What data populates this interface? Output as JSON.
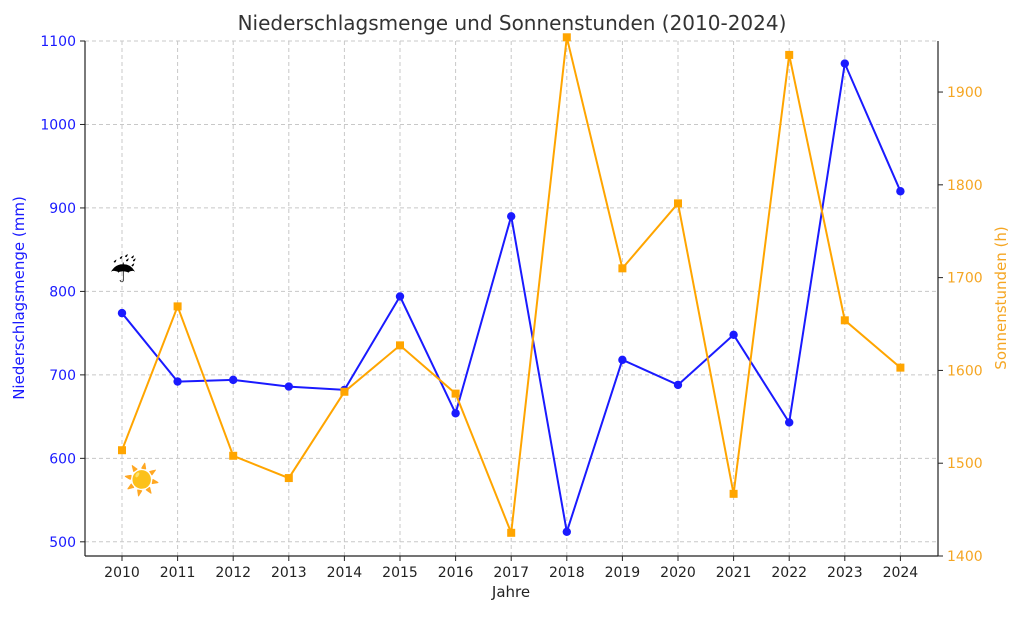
{
  "chart_data": {
    "type": "line",
    "title": "Niederschlagsmenge und Sonnenstunden (2010-2024)",
    "xlabel": "Jahre",
    "ylabel_left": "Niederschlagsmenge (mm)",
    "ylabel_right": "Sonnenstunden (h)",
    "x": [
      "2010",
      "2011",
      "2012",
      "2013",
      "2014",
      "2015",
      "2016",
      "2017",
      "2018",
      "2019",
      "2020",
      "2021",
      "2022",
      "2023",
      "2024"
    ],
    "y_left_lim": [
      483,
      1100
    ],
    "y_right_lim": [
      1400,
      1955
    ],
    "y_left_ticks": [
      "500",
      "600",
      "700",
      "800",
      "900",
      "1000",
      "1100"
    ],
    "y_right_ticks": [
      "1400",
      "1500",
      "1600",
      "1700",
      "1800",
      "1900"
    ],
    "grid": true,
    "series": [
      {
        "axis": "left",
        "color": "#1a1aff",
        "marker": "circle",
        "values": [
          774,
          692,
          694,
          686,
          682,
          794,
          654,
          890,
          512,
          718,
          688,
          748,
          643,
          1073,
          920
        ]
      },
      {
        "axis": "right",
        "color": "#ffa500",
        "marker": "square",
        "values": [
          1514,
          1669,
          1508,
          1484,
          1577,
          1627,
          1575,
          1425,
          1959,
          1710,
          1780,
          1467,
          1940,
          1654,
          1603
        ]
      }
    ],
    "icons": [
      "umbrella-rain-icon",
      "sun-icon"
    ]
  }
}
